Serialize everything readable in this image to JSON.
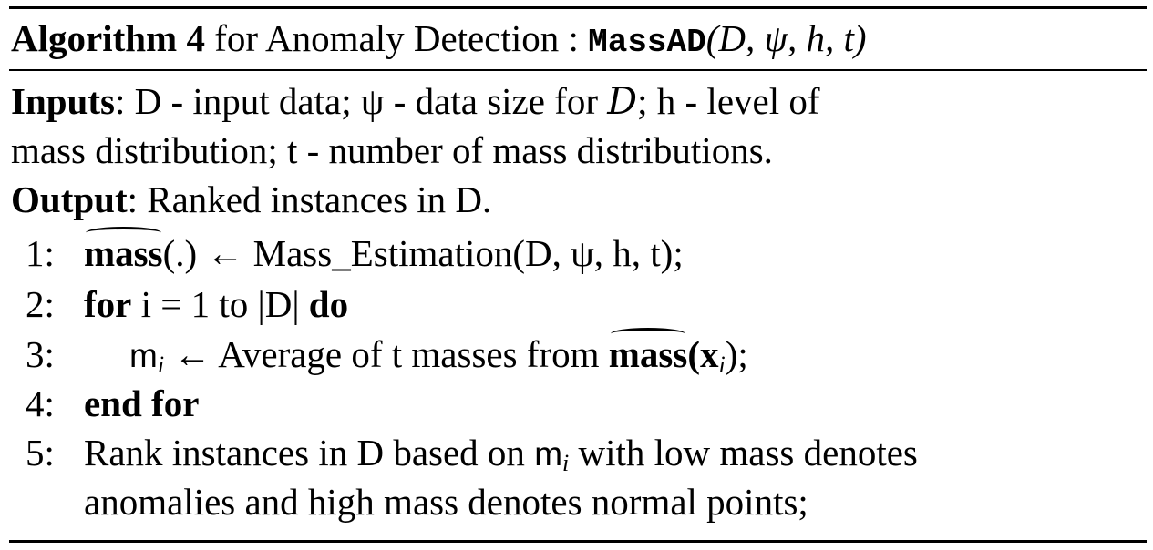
{
  "header": {
    "label": "Algorithm 4",
    "text": " for Anomaly Detection : ",
    "fname": "MassAD",
    "args": "(D, ψ, h, t)"
  },
  "inputs": {
    "label": "Inputs",
    "line1": ": D - input data; ψ - data size for ",
    "calD": "D",
    "line1b": "; h - level of",
    "line2": "mass distribution; t - number of mass distributions."
  },
  "output": {
    "label": "Output",
    "text": ": Ranked instances in D."
  },
  "steps": [
    {
      "num": "1:",
      "hat": "mass",
      "text": "(.) ← Mass_Estimation(D, ψ, h, t);"
    },
    {
      "num": "2:",
      "kw1": "for",
      "text": " i = 1 to |D| ",
      "kw2": "do"
    },
    {
      "num": "3:",
      "m": "m",
      "sub": "i",
      "text": " ← Average of t masses from ",
      "hat": "mass",
      "tail": "(x",
      "tailsub": "i",
      "end": ");"
    },
    {
      "num": "4:",
      "kw": "end for"
    },
    {
      "num": "5:",
      "text1": "Rank instances in D based on ",
      "m": "m",
      "sub": "i",
      "text2": " with low mass denotes",
      "line2": "anomalies and high mass denotes normal points;"
    }
  ]
}
